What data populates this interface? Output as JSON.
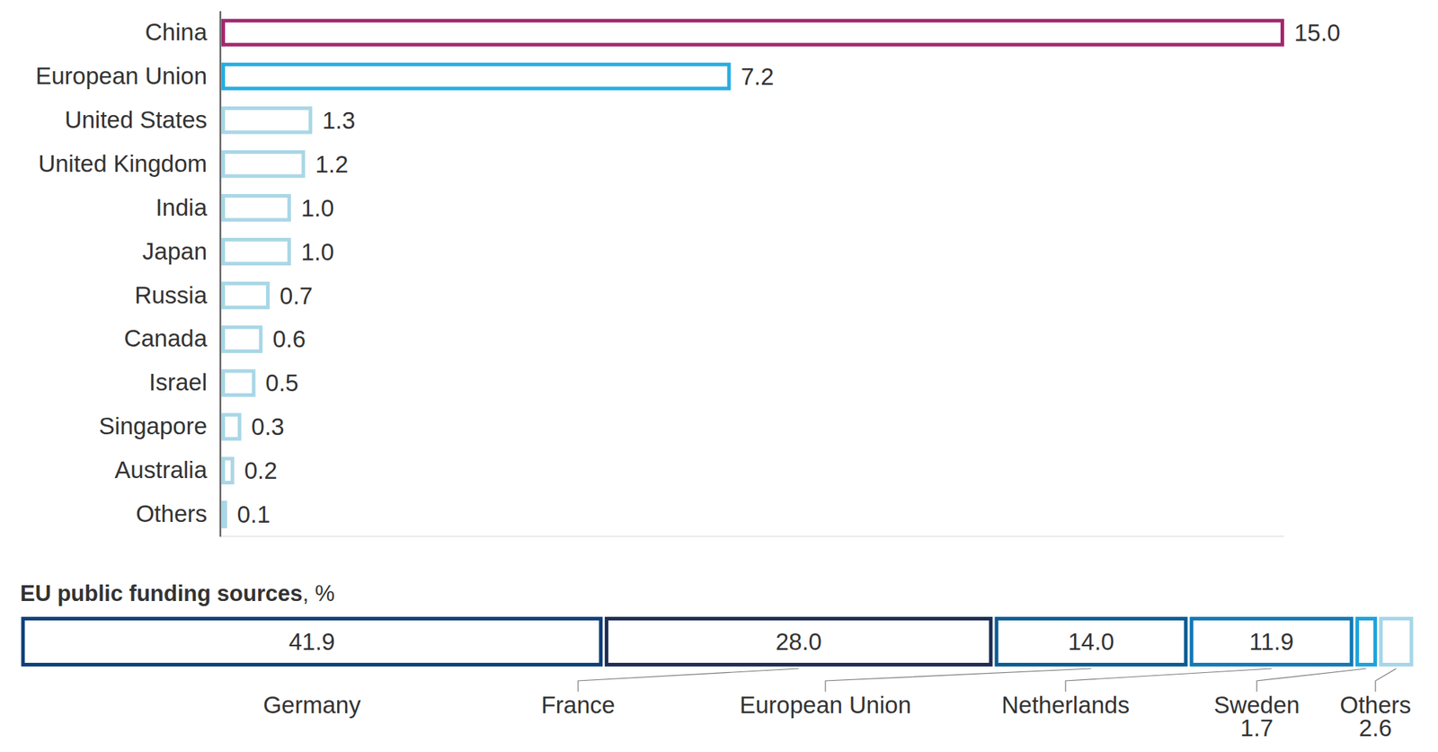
{
  "chart_data": [
    {
      "type": "bar",
      "orientation": "horizontal",
      "categories": [
        "China",
        "European Union",
        "United States",
        "United Kingdom",
        "India",
        "Japan",
        "Russia",
        "Canada",
        "Israel",
        "Singapore",
        "Australia",
        "Others"
      ],
      "values": [
        15.0,
        7.2,
        1.3,
        1.2,
        1.0,
        1.0,
        0.7,
        0.6,
        0.5,
        0.3,
        0.2,
        0.1
      ],
      "value_labels": [
        "15.0",
        "7.2",
        "1.3",
        "1.2",
        "1.0",
        "1.0",
        "0.7",
        "0.6",
        "0.5",
        "0.3",
        "0.2",
        "0.1"
      ],
      "colors": [
        "#a3286f",
        "#29ade0",
        "#a9d7e6",
        "#a9d7e6",
        "#a9d7e6",
        "#a9d7e6",
        "#a9d7e6",
        "#a9d7e6",
        "#a9d7e6",
        "#a9d7e6",
        "#a9d7e6",
        "#a9d7e6"
      ],
      "xlim": [
        0,
        15
      ],
      "data_labels": true,
      "tick_labels": "y"
    },
    {
      "type": "bar",
      "orientation": "horizontal",
      "stacked": true,
      "title": "EU public funding sources",
      "subtitle": ", %",
      "series": [
        {
          "name": "Germany",
          "color": "#0e3f7b",
          "values": [
            41.9
          ]
        },
        {
          "name": "France",
          "color": "#1e2d52",
          "values": [
            28.0
          ],
          "value_labels": [
            "28.0"
          ]
        },
        {
          "name": "European Union",
          "color": "#0b5b92",
          "values": [
            14.0
          ],
          "value_labels": [
            "14.0"
          ]
        },
        {
          "name": "Netherlands",
          "color": "#1279b6",
          "values": [
            11.9
          ]
        },
        {
          "name": "Sweden",
          "color": "#1ca3da",
          "values": [
            1.7
          ]
        },
        {
          "name": "Others",
          "color": "#a6d6e8",
          "values": [
            2.6
          ]
        }
      ],
      "xlim": [
        0,
        100.1
      ],
      "data_labels": true,
      "tick_labels": false
    }
  ]
}
